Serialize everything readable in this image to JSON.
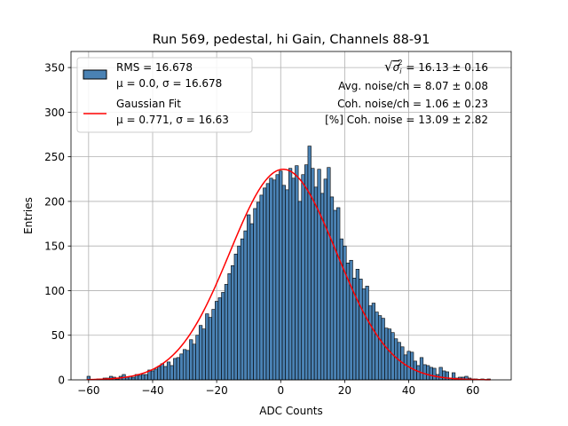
{
  "chart_data": {
    "type": "bar",
    "title": "Run 569, pedestal, hi Gain, Channels 88-91",
    "xlabel": "ADC Counts",
    "ylabel": "Entries",
    "xlim": [
      -65.5,
      72
    ],
    "ylim": [
      0,
      368
    ],
    "xticks": [
      -60,
      -40,
      -20,
      0,
      20,
      40,
      60
    ],
    "xtick_labels": [
      "−60",
      "−40",
      "−20",
      "0",
      "20",
      "40",
      "60"
    ],
    "yticks": [
      0,
      50,
      100,
      150,
      200,
      250,
      300,
      350
    ],
    "ytick_labels": [
      "0",
      "50",
      "100",
      "150",
      "200",
      "250",
      "300",
      "350"
    ],
    "grid": true,
    "bin_start": -60.5,
    "bin_width": 1,
    "bar_color": "#4a82b4",
    "bar_edge_color": "#000000",
    "fit_color": "#ff0000",
    "counts": [
      4,
      0,
      0,
      1,
      1,
      2,
      2,
      4,
      3,
      1,
      4,
      6,
      3,
      4,
      3,
      6,
      5,
      6,
      6,
      11,
      10,
      12,
      15,
      18,
      15,
      20,
      16,
      24,
      25,
      29,
      34,
      33,
      45,
      40,
      50,
      61,
      57,
      74,
      70,
      79,
      88,
      92,
      98,
      107,
      119,
      128,
      141,
      150,
      158,
      167,
      185,
      175,
      192,
      199,
      207,
      215,
      220,
      226,
      224,
      230,
      234,
      218,
      213,
      237,
      226,
      240,
      200,
      230,
      241,
      262,
      237,
      216,
      236,
      209,
      225,
      238,
      205,
      190,
      193,
      158,
      150,
      131,
      134,
      114,
      124,
      113,
      102,
      105,
      83,
      86,
      76,
      72,
      69,
      58,
      57,
      53,
      46,
      42,
      37,
      28,
      32,
      31,
      21,
      16,
      25,
      17,
      16,
      14,
      13,
      6,
      14,
      10,
      9,
      2,
      8,
      2,
      3,
      3,
      4,
      2,
      1,
      1,
      0,
      1,
      0,
      1
    ],
    "fit": {
      "label": "Gaussian Fit",
      "mu": 0.771,
      "sigma": 16.63,
      "amplitude": 236
    },
    "legend": {
      "placement": "top-left",
      "entries": [
        {
          "line1": "RMS = 16.678",
          "line2": "μ = 0.0, σ = 16.678"
        },
        {
          "line1": "Gaussian Fit",
          "line2": "μ = 0.771, σ = 16.63"
        }
      ]
    },
    "annotations": [
      {
        "prefix": "√",
        "symbol": "σ",
        "sub": "i",
        "sup": "2",
        "value": " = 16.13 ± 0.16"
      },
      {
        "text": "Avg. noise/ch = 8.07 ± 0.08"
      },
      {
        "text": "Coh. noise/ch = 1.06 ± 0.23"
      },
      {
        "text": "[%] Coh. noise = 13.09 ± 2.82"
      }
    ]
  }
}
